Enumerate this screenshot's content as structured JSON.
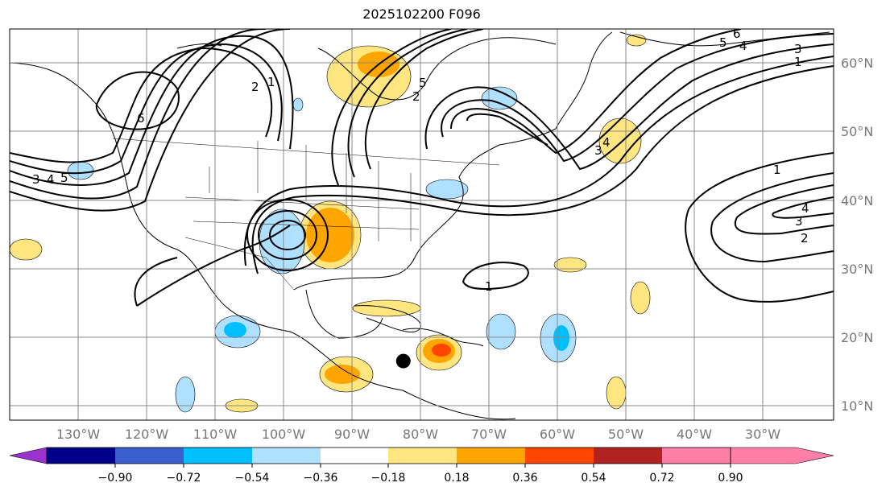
{
  "title": "2025102200 F096",
  "map": {
    "lon_labels": [
      "130°W",
      "120°W",
      "110°W",
      "100°W",
      "90°W",
      "80°W",
      "70°W",
      "60°W",
      "50°W",
      "40°W",
      "30°W"
    ],
    "lat_labels": [
      "60°N",
      "50°N",
      "40°N",
      "30°N",
      "20°N",
      "10°N"
    ],
    "contour_labels": [
      "6",
      "2",
      "1",
      "2",
      "3",
      "4",
      "5",
      "6",
      "5",
      "4",
      "3",
      "1",
      "1",
      "4",
      "3",
      "2",
      "1",
      "3",
      "4",
      "5"
    ],
    "storm_marker": {
      "lon": -77.5,
      "lat": 16.5
    }
  },
  "colorbar": {
    "ticks": [
      "−0.90",
      "−0.72",
      "−0.54",
      "−0.36",
      "−0.18",
      "0.18",
      "0.36",
      "0.54",
      "0.72",
      "0.90"
    ],
    "colors": [
      "#9a32cd",
      "#00008b",
      "#3a5fcd",
      "#00bfff",
      "#b0e0ff",
      "#ffffff",
      "#ffe680",
      "#ffa500",
      "#ff4500",
      "#b22222",
      "#ff7fa8"
    ]
  }
}
